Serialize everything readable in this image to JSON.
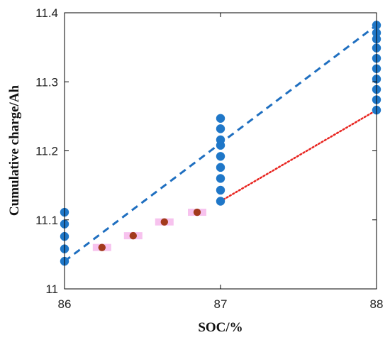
{
  "chart_data": {
    "type": "scatter",
    "xlabel": "SOC/%",
    "ylabel": "Cumulative charge/Ah",
    "xlim": [
      86,
      88
    ],
    "ylim": [
      11.0,
      11.4
    ],
    "xticks": [
      {
        "value": 86,
        "label": "86"
      },
      {
        "value": 87,
        "label": "87"
      },
      {
        "value": 88,
        "label": "88"
      }
    ],
    "yticks": [
      {
        "value": 11.0,
        "label": "11"
      },
      {
        "value": 11.1,
        "label": "11.1"
      },
      {
        "value": 11.2,
        "label": "11.2"
      },
      {
        "value": 11.3,
        "label": "11.3"
      },
      {
        "value": 11.4,
        "label": "11.4"
      }
    ],
    "grid": false,
    "series": [
      {
        "color": "#1f77c8",
        "marker": "circle",
        "points": [
          [
            86,
            11.04
          ],
          [
            86,
            11.058
          ],
          [
            86,
            11.076
          ],
          [
            86,
            11.094
          ],
          [
            86,
            11.111
          ],
          [
            87,
            11.127
          ],
          [
            87,
            11.143
          ],
          [
            87,
            11.16
          ],
          [
            87,
            11.176
          ],
          [
            87,
            11.192
          ],
          [
            87,
            11.208
          ],
          [
            87,
            11.216
          ],
          [
            87,
            11.232
          ],
          [
            87,
            11.247
          ],
          [
            88,
            11.259
          ],
          [
            88,
            11.274
          ],
          [
            88,
            11.289
          ],
          [
            88,
            11.304
          ],
          [
            88,
            11.319
          ],
          [
            88,
            11.334
          ],
          [
            88,
            11.349
          ],
          [
            88,
            11.362
          ],
          [
            88,
            11.371
          ],
          [
            88,
            11.382
          ]
        ]
      },
      {
        "color": "#a33a1c",
        "highlight": "#f7c2ee",
        "marker": "circle",
        "points": [
          [
            86.24,
            11.06
          ],
          [
            86.44,
            11.077
          ],
          [
            86.64,
            11.097
          ],
          [
            86.85,
            11.111
          ]
        ]
      }
    ],
    "lines": [
      {
        "style": "dashed",
        "color": "#1f6fc0",
        "from": [
          86,
          11.04
        ],
        "to": [
          88,
          11.382
        ]
      },
      {
        "style": "dotted",
        "color": "#e8241f",
        "from": [
          87,
          11.127
        ],
        "to": [
          88,
          11.259
        ]
      }
    ]
  }
}
